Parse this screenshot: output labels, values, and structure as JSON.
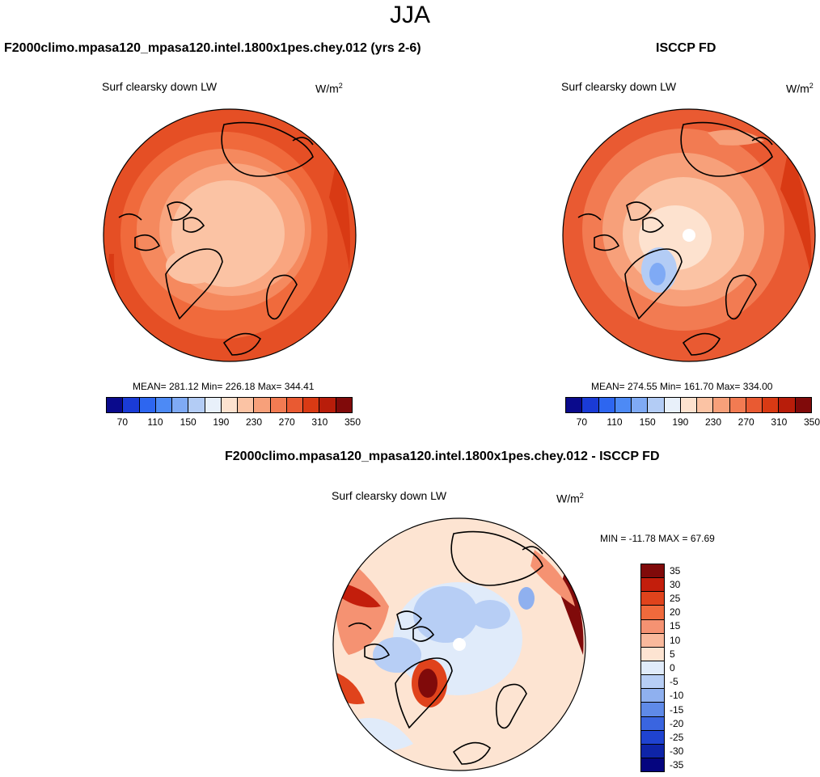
{
  "season": "JJA",
  "panels": {
    "model": {
      "header": "F2000climo.mpasa120_mpasa120.intel.1800x1pes.chey.012 (yrs 2-6)",
      "title": "Surf clearsky down LW",
      "units": "W/m",
      "units_exp": "2",
      "stats": "MEAN= 281.12  Min= 226.18  Max= 344.41"
    },
    "obs": {
      "header": "ISCCP FD",
      "title": "Surf clearsky down LW",
      "units": "W/m",
      "units_exp": "2",
      "stats": "MEAN= 274.55  Min= 161.70  Max= 334.00"
    },
    "diff": {
      "header": "F2000climo.mpasa120_mpasa120.intel.1800x1pes.chey.012 - ISCCP FD",
      "title": "Surf clearsky down LW",
      "units": "W/m",
      "units_exp": "2",
      "stats": "MIN = -11.78 MAX =  67.69"
    }
  },
  "colorbars": {
    "abs": {
      "colors": [
        "#0a0a8c",
        "#1a3bd6",
        "#2d66f0",
        "#4d8af5",
        "#7faaf5",
        "#b3ccf5",
        "#e8f0fa",
        "#fde2cf",
        "#fbc3a4",
        "#f7a07a",
        "#f27b52",
        "#e95a32",
        "#d93a14",
        "#b81d0a",
        "#800a0a"
      ],
      "tick_labels": [
        "70",
        "110",
        "150",
        "190",
        "230",
        "270",
        "310",
        "350"
      ]
    },
    "diff": {
      "colors": [
        "#800a0a",
        "#c31e0c",
        "#e0431c",
        "#f06a3c",
        "#f59272",
        "#f9b99c",
        "#fde4d2",
        "#e0ebfa",
        "#b7cef5",
        "#8fb0ef",
        "#5f8ae8",
        "#3a65e0",
        "#1f43d0",
        "#0e24a8",
        "#05057f"
      ],
      "tick_labels": [
        "35",
        "30",
        "25",
        "20",
        "15",
        "10",
        "5",
        "0",
        "-5",
        "-10",
        "-15",
        "-20",
        "-25",
        "-30",
        "-35"
      ]
    }
  }
}
